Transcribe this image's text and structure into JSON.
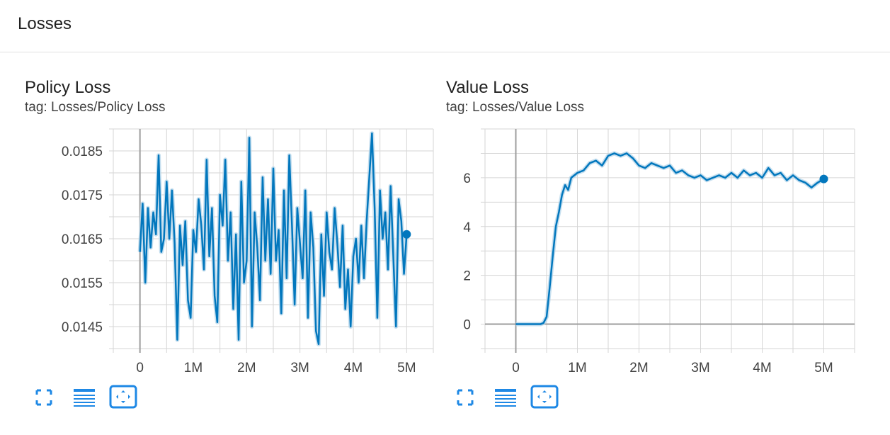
{
  "section": {
    "title": "Losses"
  },
  "cards": [
    {
      "title": "Policy Loss",
      "tag": "tag: Losses/Policy Loss",
      "toolbar": {
        "expand_icon": "expand-icon",
        "data_table_icon": "data-table-icon",
        "fit_domain_icon": "fit-domain-icon"
      }
    },
    {
      "title": "Value Loss",
      "tag": "tag: Losses/Value Loss",
      "toolbar": {
        "expand_icon": "expand-icon",
        "data_table_icon": "data-table-icon",
        "fit_domain_icon": "fit-domain-icon"
      }
    }
  ],
  "colors": {
    "smoothed_line": "#0277bd",
    "raw_line": "#b3d4ea",
    "grid": "#d6d6d6",
    "zero_axis": "#9e9e9e",
    "toolbar_icon": "#1e88e5"
  },
  "chart_data": [
    {
      "type": "line",
      "title": "Policy Loss",
      "x_ticks": [
        0,
        1000000,
        2000000,
        3000000,
        4000000,
        5000000
      ],
      "x_tick_labels": [
        "0",
        "1M",
        "2M",
        "3M",
        "4M",
        "5M"
      ],
      "y_ticks": [
        0.0145,
        0.0155,
        0.0165,
        0.0175,
        0.0185
      ],
      "y_tick_labels": [
        "0.0145",
        "0.0155",
        "0.0165",
        "0.0175",
        "0.0185"
      ],
      "xlim": [
        -500000,
        5500000
      ],
      "ylim": [
        0.014,
        0.019
      ],
      "grid": true,
      "series": [
        {
          "role": "smoothed",
          "x": [
            0,
            50000,
            100000,
            150000,
            200000,
            250000,
            300000,
            350000,
            400000,
            450000,
            500000,
            550000,
            600000,
            650000,
            700000,
            750000,
            800000,
            850000,
            900000,
            950000,
            1000000,
            1050000,
            1100000,
            1150000,
            1200000,
            1250000,
            1300000,
            1350000,
            1400000,
            1450000,
            1500000,
            1550000,
            1600000,
            1650000,
            1700000,
            1750000,
            1800000,
            1850000,
            1900000,
            1950000,
            2000000,
            2050000,
            2100000,
            2150000,
            2200000,
            2250000,
            2300000,
            2350000,
            2400000,
            2450000,
            2500000,
            2550000,
            2600000,
            2650000,
            2700000,
            2750000,
            2800000,
            2850000,
            2900000,
            2950000,
            3000000,
            3050000,
            3100000,
            3150000,
            3200000,
            3250000,
            3300000,
            3350000,
            3400000,
            3450000,
            3500000,
            3550000,
            3600000,
            3650000,
            3700000,
            3750000,
            3800000,
            3850000,
            3900000,
            3950000,
            4000000,
            4050000,
            4100000,
            4150000,
            4200000,
            4250000,
            4300000,
            4350000,
            4400000,
            4450000,
            4500000,
            4550000,
            4600000,
            4650000,
            4700000,
            4750000,
            4800000,
            4850000,
            4900000,
            4950000,
            5000000
          ],
          "y": [
            0.0162,
            0.0173,
            0.0155,
            0.0172,
            0.0163,
            0.0171,
            0.0166,
            0.0184,
            0.0162,
            0.0165,
            0.0178,
            0.0165,
            0.0176,
            0.0164,
            0.0142,
            0.0168,
            0.0159,
            0.0169,
            0.0151,
            0.0147,
            0.0167,
            0.0162,
            0.0174,
            0.0168,
            0.0158,
            0.0183,
            0.0161,
            0.0172,
            0.0152,
            0.0146,
            0.0175,
            0.0168,
            0.0183,
            0.016,
            0.0171,
            0.0149,
            0.0166,
            0.0142,
            0.0178,
            0.0155,
            0.016,
            0.0188,
            0.0145,
            0.0171,
            0.0163,
            0.0151,
            0.0179,
            0.016,
            0.0174,
            0.0157,
            0.0181,
            0.016,
            0.0167,
            0.0148,
            0.0176,
            0.0156,
            0.0184,
            0.0168,
            0.015,
            0.0172,
            0.0164,
            0.0156,
            0.0176,
            0.0147,
            0.0171,
            0.0163,
            0.0144,
            0.0141,
            0.0166,
            0.0152,
            0.0171,
            0.0162,
            0.0158,
            0.0172,
            0.0164,
            0.0154,
            0.0168,
            0.0149,
            0.0158,
            0.0145,
            0.0161,
            0.0165,
            0.0155,
            0.0168,
            0.0156,
            0.0169,
            0.0179,
            0.0189,
            0.0172,
            0.0147,
            0.0176,
            0.0165,
            0.0171,
            0.0158,
            0.0177,
            0.0161,
            0.0145,
            0.0174,
            0.0169,
            0.0157,
            0.0166
          ]
        }
      ]
    },
    {
      "type": "line",
      "title": "Value Loss",
      "x_ticks": [
        0,
        1000000,
        2000000,
        3000000,
        4000000,
        5000000
      ],
      "x_tick_labels": [
        "0",
        "1M",
        "2M",
        "3M",
        "4M",
        "5M"
      ],
      "y_ticks": [
        0,
        2,
        4,
        6
      ],
      "y_tick_labels": [
        "0",
        "2",
        "4",
        "6"
      ],
      "xlim": [
        -500000,
        5500000
      ],
      "ylim": [
        -1,
        8
      ],
      "grid": true,
      "series": [
        {
          "role": "smoothed",
          "x": [
            0,
            100000,
            200000,
            300000,
            400000,
            450000,
            500000,
            550000,
            600000,
            650000,
            700000,
            750000,
            800000,
            850000,
            900000,
            1000000,
            1100000,
            1200000,
            1300000,
            1400000,
            1500000,
            1600000,
            1700000,
            1800000,
            1900000,
            2000000,
            2100000,
            2200000,
            2300000,
            2400000,
            2500000,
            2600000,
            2700000,
            2800000,
            2900000,
            3000000,
            3100000,
            3200000,
            3300000,
            3400000,
            3500000,
            3600000,
            3700000,
            3800000,
            3900000,
            4000000,
            4100000,
            4200000,
            4300000,
            4400000,
            4500000,
            4600000,
            4700000,
            4800000,
            4900000,
            5000000
          ],
          "y": [
            0.0,
            0.0,
            0.0,
            0.0,
            0.0,
            0.05,
            0.3,
            1.5,
            2.8,
            4.0,
            4.6,
            5.3,
            5.7,
            5.5,
            6.0,
            6.2,
            6.3,
            6.6,
            6.7,
            6.5,
            6.9,
            7.0,
            6.9,
            7.0,
            6.8,
            6.5,
            6.4,
            6.6,
            6.5,
            6.4,
            6.5,
            6.2,
            6.3,
            6.1,
            6.0,
            6.1,
            5.9,
            6.0,
            6.1,
            6.0,
            6.2,
            6.0,
            6.3,
            6.1,
            6.2,
            6.0,
            6.4,
            6.1,
            6.2,
            5.9,
            6.1,
            5.9,
            5.8,
            5.6,
            5.8,
            5.95
          ]
        }
      ]
    }
  ]
}
